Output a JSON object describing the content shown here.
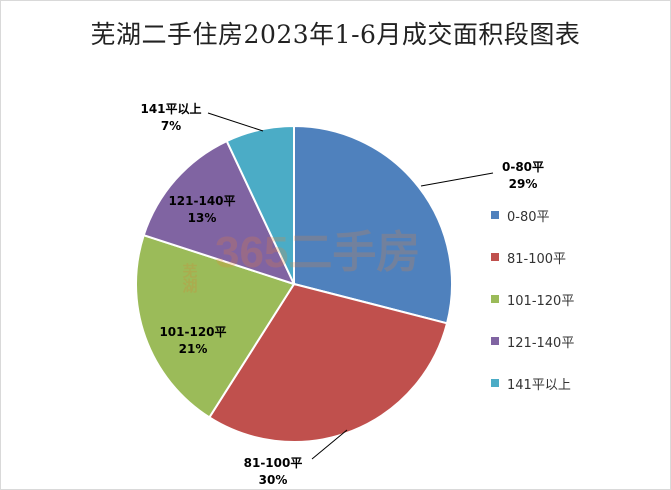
{
  "colors": {
    "slices": [
      "#4f81bd",
      "#c0504d",
      "#9bbb59",
      "#8064a2",
      "#4bacc6"
    ],
    "background": "#ffffff"
  },
  "chart_data": {
    "type": "pie",
    "title": "芜湖二手住房2023年1-6月成交面积段图表",
    "categories": [
      "0-80平",
      "81-100平",
      "101-120平",
      "121-140平",
      "141平以上"
    ],
    "values": [
      29,
      30,
      21,
      13,
      7
    ],
    "value_labels": [
      "29%",
      "30%",
      "21%",
      "13%",
      "7%"
    ],
    "start_angle_deg": 0,
    "direction": "clockwise",
    "legend_position": "right"
  },
  "watermark": {
    "text": "365二手房",
    "side_text": "芜湖"
  }
}
